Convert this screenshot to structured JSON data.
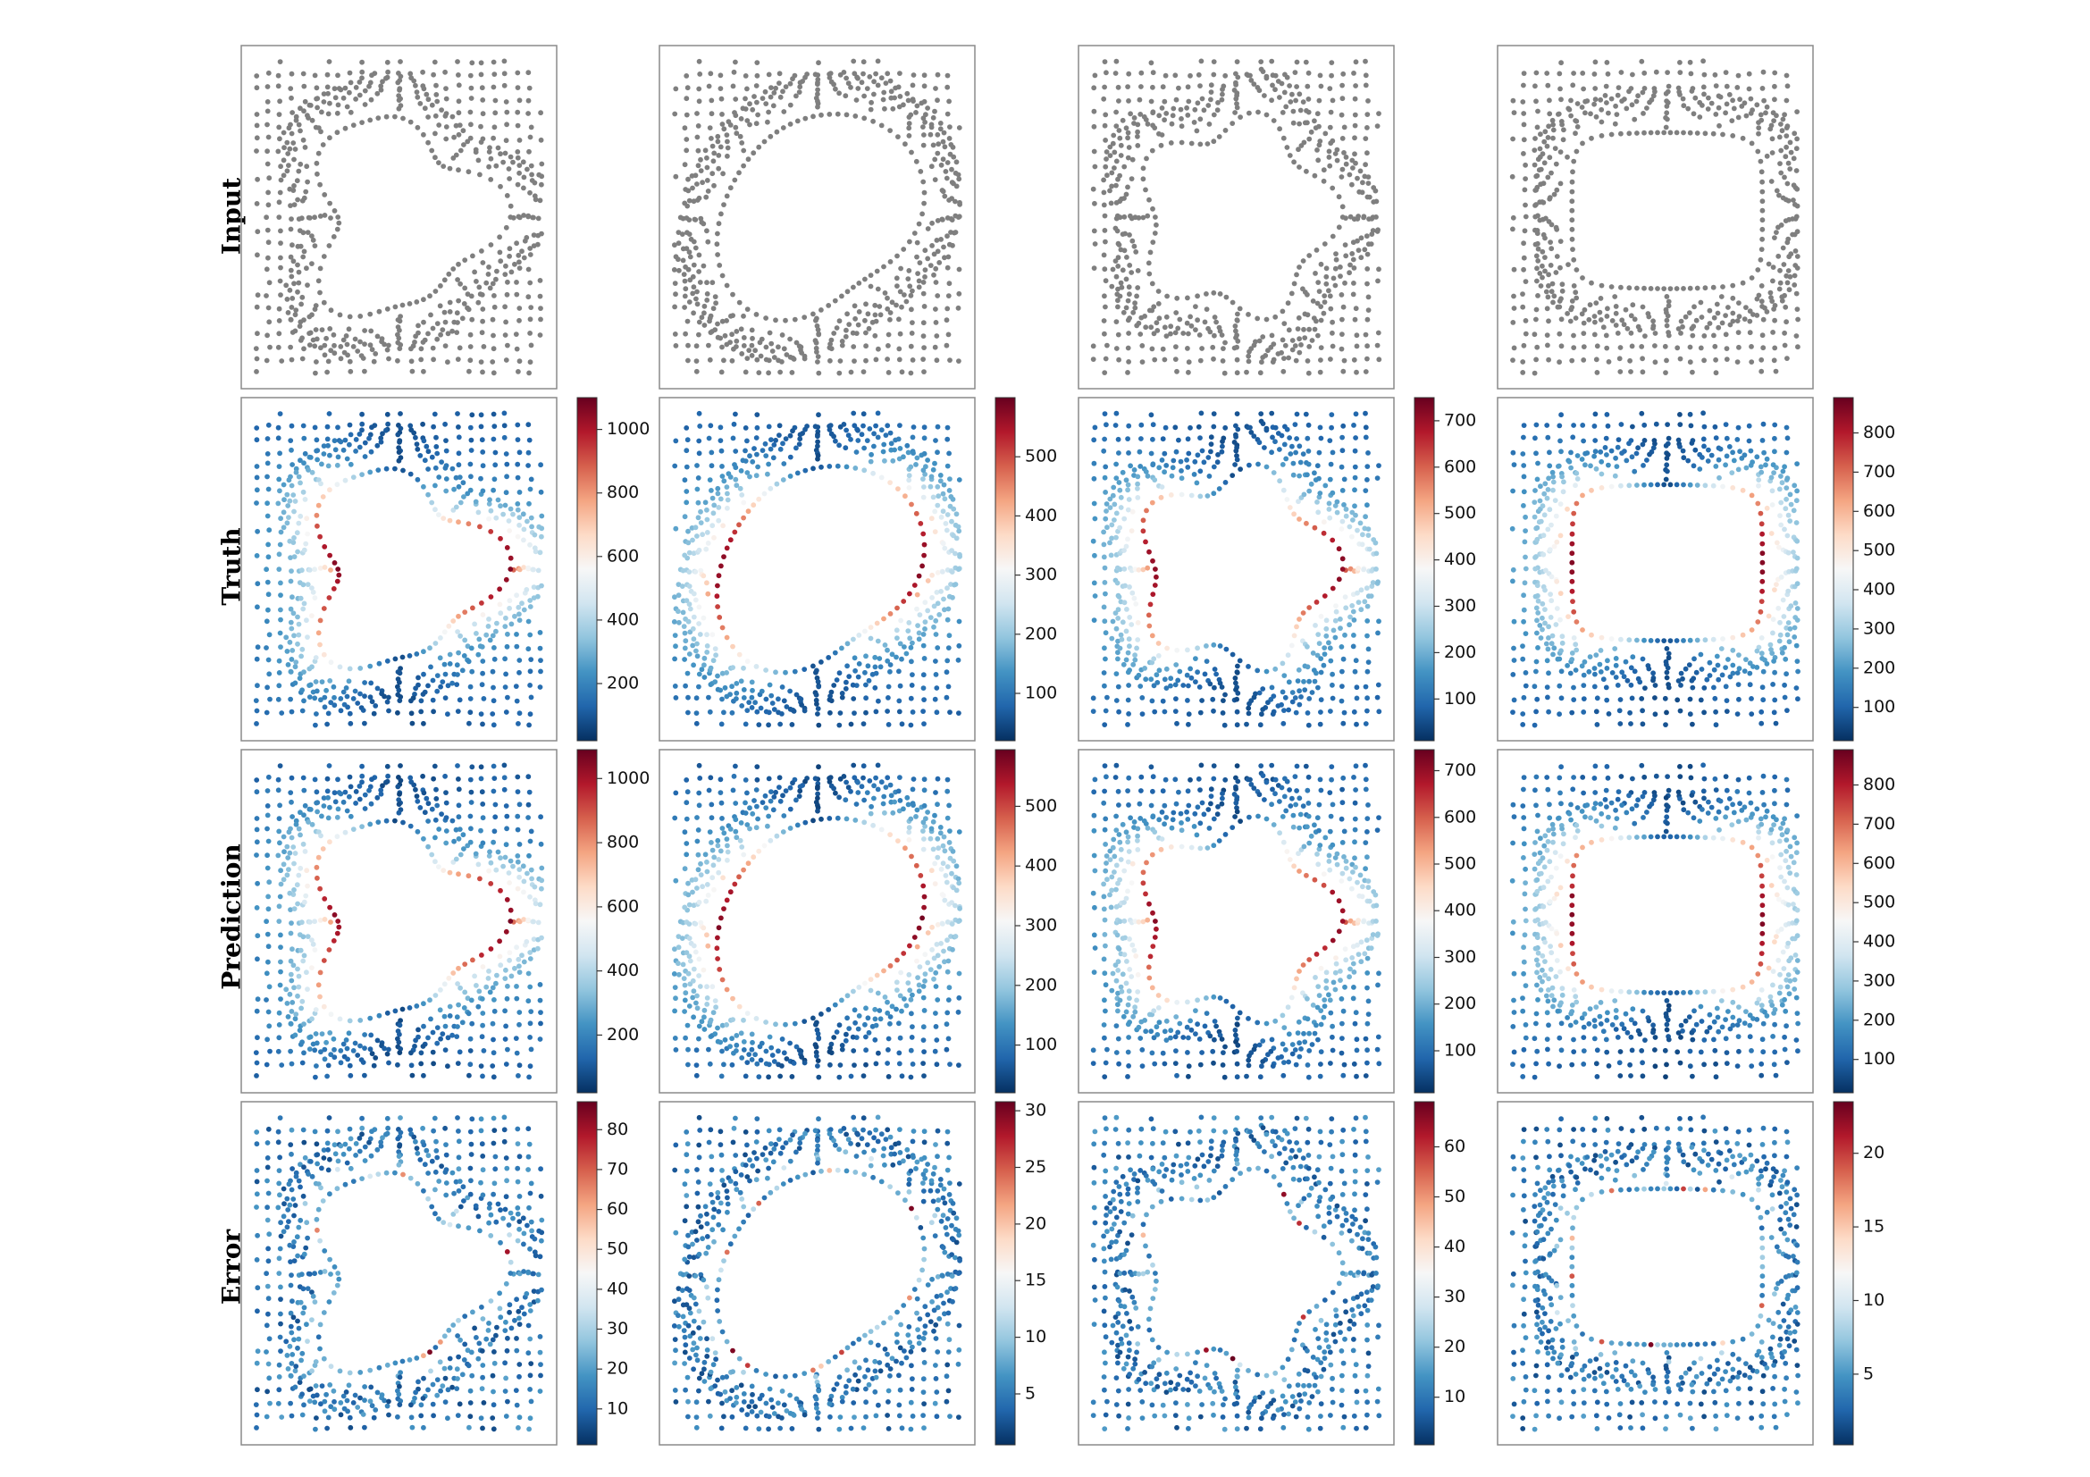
{
  "row_labels": [
    "Input",
    "Truth",
    "Prediction",
    "Error"
  ],
  "colors": {
    "input_points": "#7f7f7f",
    "colormap": "RdBu_r",
    "colormap_stops": [
      "#053061",
      "#2166ac",
      "#4393c3",
      "#92c5de",
      "#d1e5f0",
      "#f7f7f7",
      "#fddbc7",
      "#f4a582",
      "#d6604d",
      "#b2182b",
      "#67001f"
    ]
  },
  "chart_data": {
    "type": "scatter",
    "description_kind": "4x4 grid of point-cloud scatter plots with per-row colorbars",
    "columns": [
      {
        "shape": "lobed",
        "truth": {
          "range": [
            20,
            1100
          ],
          "ticks": [
            200,
            400,
            600,
            800,
            1000
          ]
        },
        "prediction": {
          "range": [
            20,
            1090
          ],
          "ticks": [
            200,
            400,
            600,
            800,
            1000
          ]
        },
        "error": {
          "range": [
            1,
            87
          ],
          "ticks": [
            10,
            20,
            30,
            40,
            50,
            60,
            70,
            80
          ]
        }
      },
      {
        "shape": "oval",
        "truth": {
          "range": [
            20,
            600
          ],
          "ticks": [
            100,
            200,
            300,
            400,
            500
          ]
        },
        "prediction": {
          "range": [
            20,
            595
          ],
          "ticks": [
            100,
            200,
            300,
            400,
            500
          ]
        },
        "error": {
          "range": [
            0.5,
            30.8
          ],
          "ticks": [
            5,
            10,
            15,
            20,
            25,
            30
          ]
        }
      },
      {
        "shape": "pentagon",
        "truth": {
          "range": [
            10,
            750
          ],
          "ticks": [
            100,
            200,
            300,
            400,
            500,
            600,
            700
          ]
        },
        "prediction": {
          "range": [
            10,
            745
          ],
          "ticks": [
            100,
            200,
            300,
            400,
            500,
            600,
            700
          ]
        },
        "error": {
          "range": [
            0.5,
            69
          ],
          "ticks": [
            10,
            20,
            30,
            40,
            50,
            60
          ]
        }
      },
      {
        "shape": "rounded-rectangle",
        "truth": {
          "range": [
            15,
            890
          ],
          "ticks": [
            100,
            200,
            300,
            400,
            500,
            600,
            700,
            800
          ]
        },
        "prediction": {
          "range": [
            15,
            890
          ],
          "ticks": [
            100,
            200,
            300,
            400,
            500,
            600,
            700,
            800
          ]
        },
        "error": {
          "range": [
            0.2,
            23.5
          ],
          "ticks": [
            5,
            10,
            15,
            20
          ]
        }
      }
    ]
  }
}
